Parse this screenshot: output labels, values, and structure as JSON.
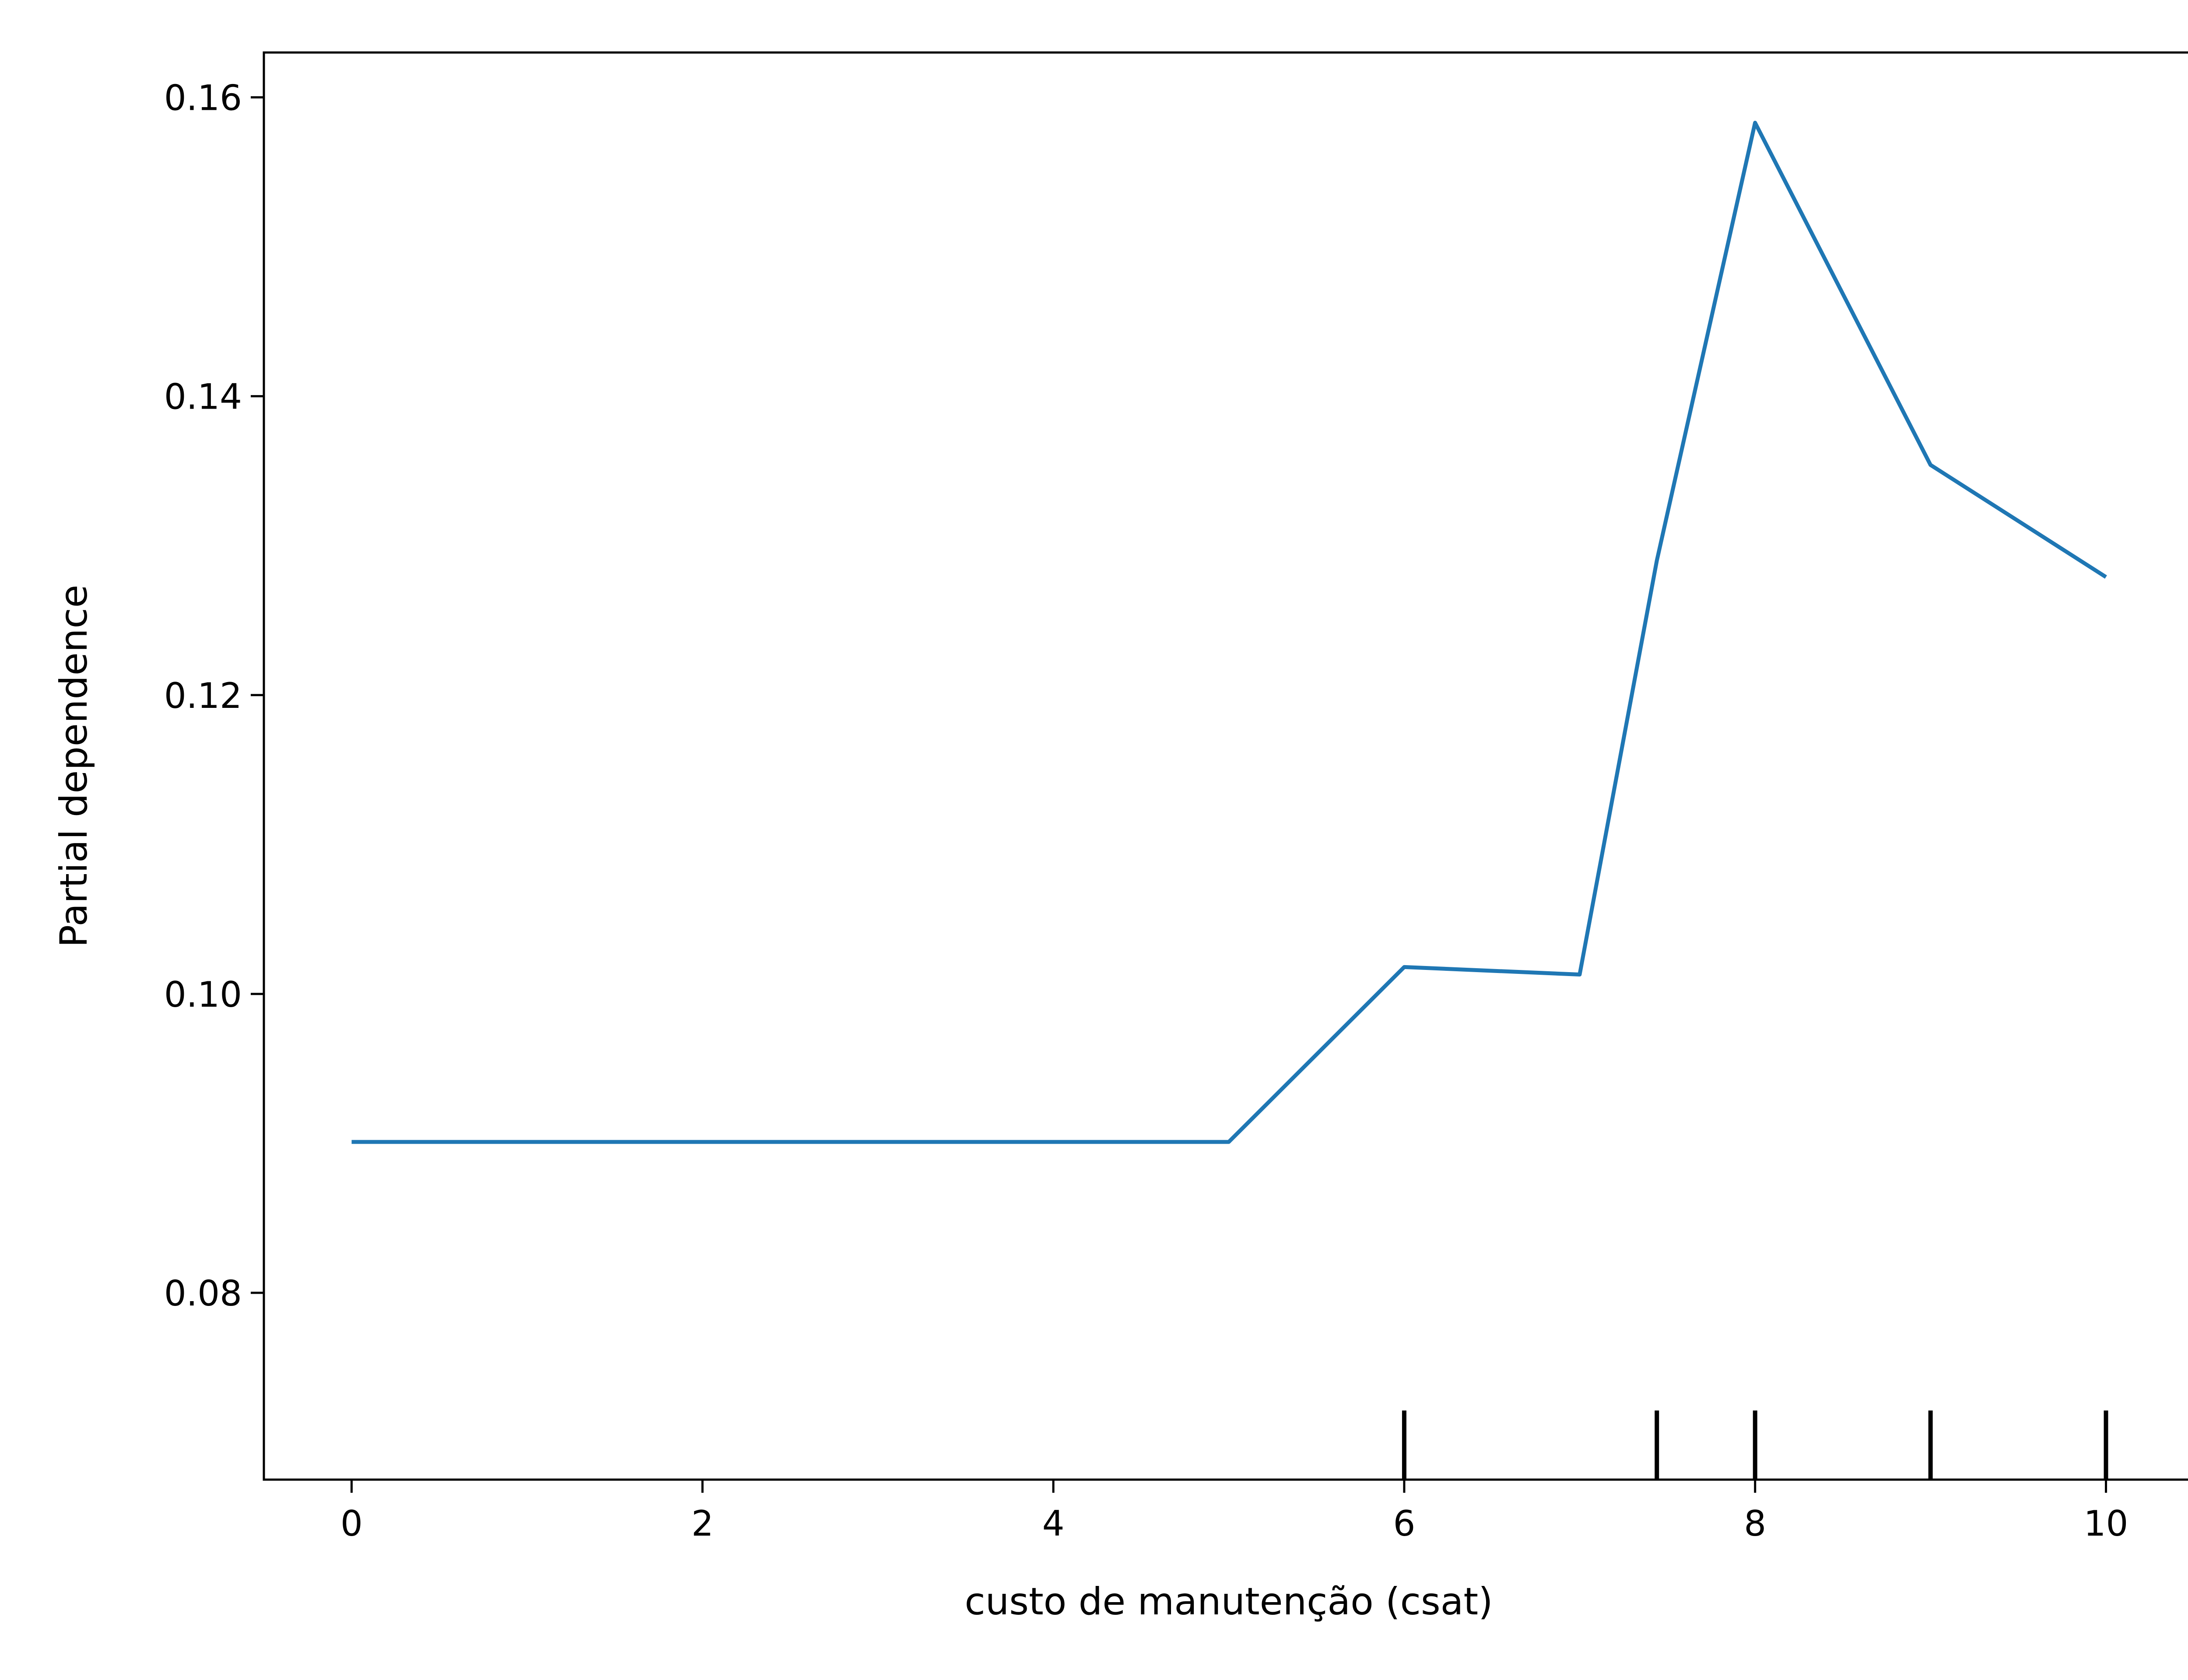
{
  "chart_data": {
    "type": "line",
    "title": "",
    "xlabel": "custo de manutenção (csat)",
    "ylabel": "Partial dependence",
    "xlim": [
      -0.5,
      10.5
    ],
    "ylim": [
      0.0675,
      0.163
    ],
    "x_ticks": [
      0,
      2,
      4,
      6,
      8,
      10
    ],
    "x_tick_labels": [
      "0",
      "2",
      "4",
      "6",
      "8",
      "10"
    ],
    "y_ticks": [
      0.08,
      0.1,
      0.12,
      0.14,
      0.16
    ],
    "y_tick_labels": [
      "0.08",
      "0.10",
      "0.12",
      "0.14",
      "0.16"
    ],
    "grid": false,
    "legend": "none",
    "series": [
      {
        "color": "#1f77b4",
        "x": [
          0,
          1,
          2,
          3,
          4,
          5,
          6,
          7,
          7.44,
          8,
          9,
          10
        ],
        "values": [
          0.0901,
          0.0901,
          0.0901,
          0.0901,
          0.0901,
          0.0901,
          0.1018,
          0.1013,
          0.129,
          0.1583,
          0.1354,
          0.1279
        ]
      }
    ],
    "rug": {
      "color": "#000000",
      "x": [
        6,
        7.44,
        8,
        9,
        10
      ]
    }
  }
}
